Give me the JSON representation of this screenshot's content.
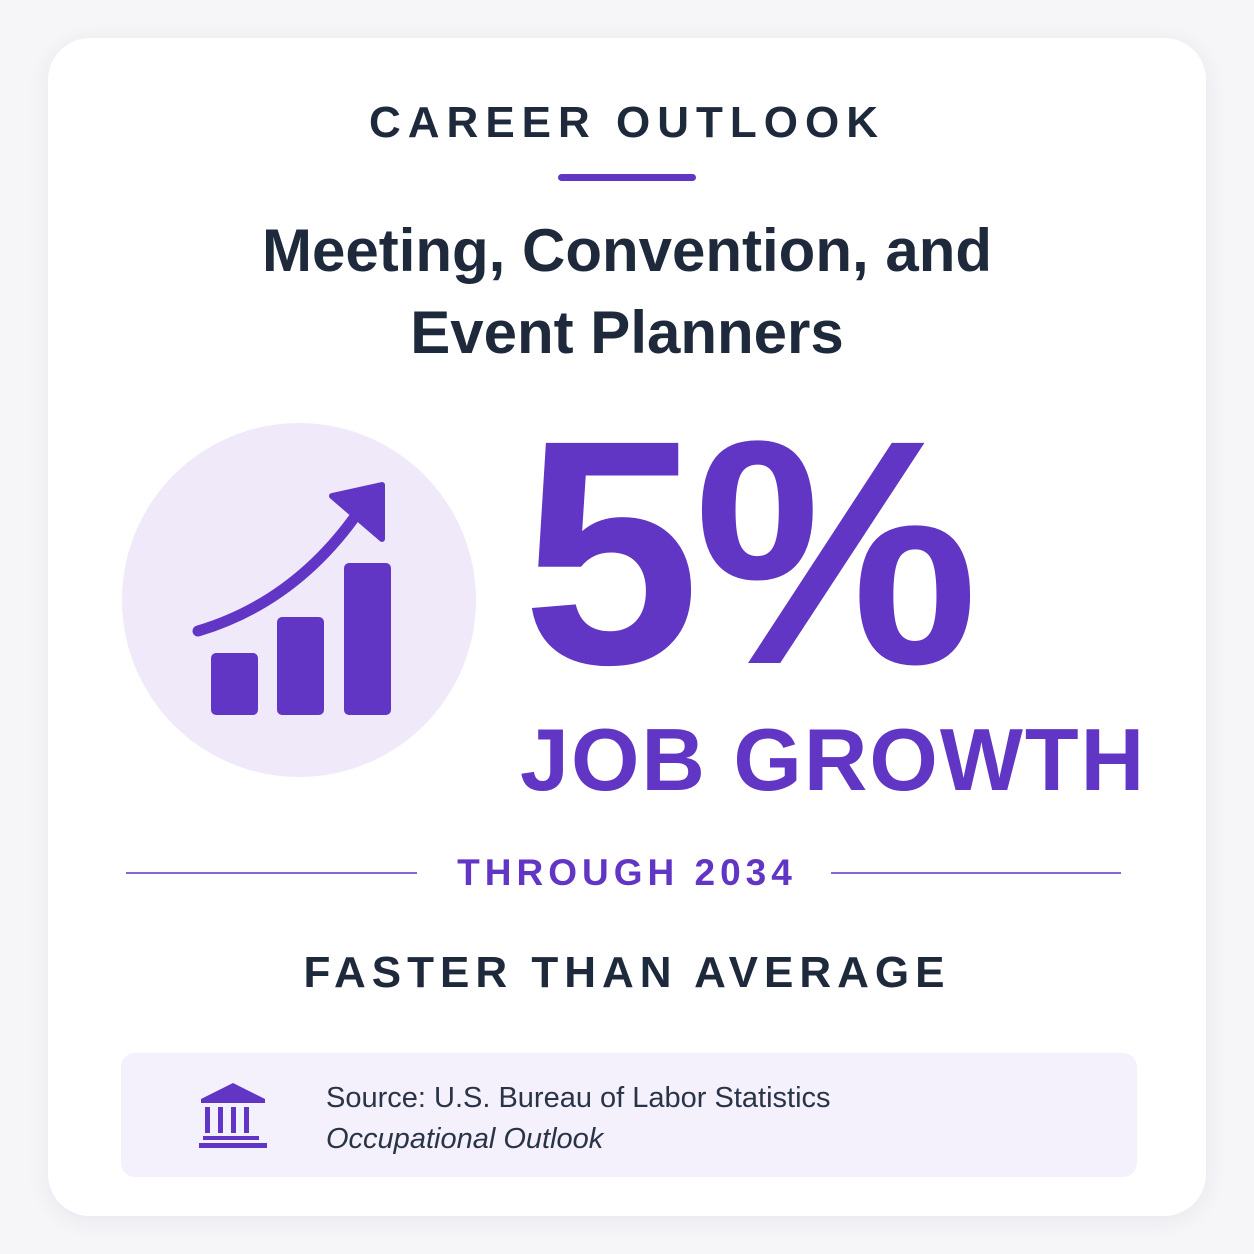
{
  "header": {
    "eyebrow": "CAREER OUTLOOK",
    "title_line1": "Meeting, Convention, and",
    "title_line2": "Event Planners"
  },
  "stat": {
    "value": "5%",
    "label": "JOB GROWTH",
    "period": "THROUGH 2034",
    "comparison": "FASTER THAN AVERAGE",
    "growth_icon": "chart-growth-icon"
  },
  "source": {
    "icon": "bank-building-icon",
    "line1": "Source: U.S. Bureau of Labor Statistics",
    "line2": "Occupational Outlook"
  },
  "colors": {
    "accent": "#6236c4",
    "text": "#1e2a3b",
    "circle_bg": "#efe9fa",
    "source_bg": "#f4f0fc"
  }
}
